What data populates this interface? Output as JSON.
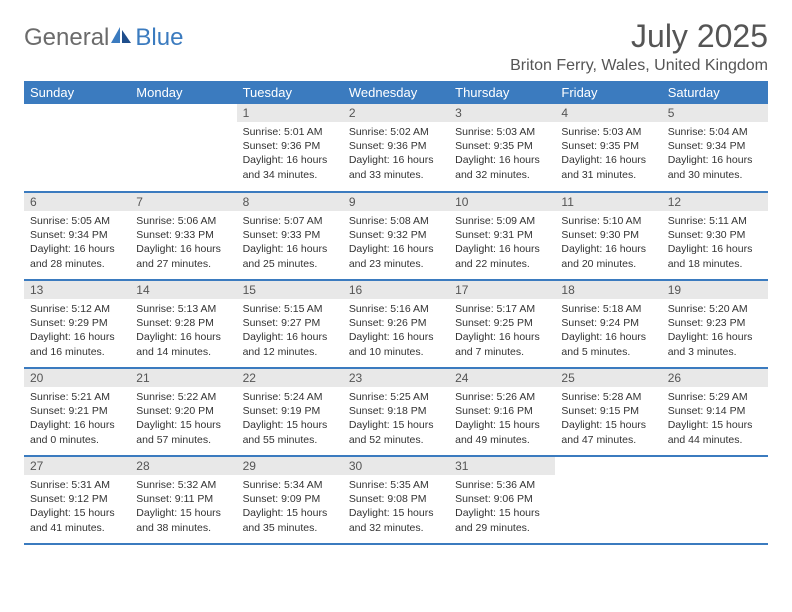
{
  "logo": {
    "word1": "General",
    "word2": "Blue"
  },
  "title": "July 2025",
  "location": "Briton Ferry, Wales, United Kingdom",
  "colors": {
    "header_bg": "#3b7bbf",
    "header_text": "#ffffff",
    "daynum_bg": "#e8e8e8",
    "text": "#333333",
    "rule": "#3b7bbf"
  },
  "weekdays": [
    "Sunday",
    "Monday",
    "Tuesday",
    "Wednesday",
    "Thursday",
    "Friday",
    "Saturday"
  ],
  "weeks": [
    [
      null,
      null,
      {
        "n": "1",
        "sr": "5:01 AM",
        "ss": "9:36 PM",
        "dl": "16 hours and 34 minutes."
      },
      {
        "n": "2",
        "sr": "5:02 AM",
        "ss": "9:36 PM",
        "dl": "16 hours and 33 minutes."
      },
      {
        "n": "3",
        "sr": "5:03 AM",
        "ss": "9:35 PM",
        "dl": "16 hours and 32 minutes."
      },
      {
        "n": "4",
        "sr": "5:03 AM",
        "ss": "9:35 PM",
        "dl": "16 hours and 31 minutes."
      },
      {
        "n": "5",
        "sr": "5:04 AM",
        "ss": "9:34 PM",
        "dl": "16 hours and 30 minutes."
      }
    ],
    [
      {
        "n": "6",
        "sr": "5:05 AM",
        "ss": "9:34 PM",
        "dl": "16 hours and 28 minutes."
      },
      {
        "n": "7",
        "sr": "5:06 AM",
        "ss": "9:33 PM",
        "dl": "16 hours and 27 minutes."
      },
      {
        "n": "8",
        "sr": "5:07 AM",
        "ss": "9:33 PM",
        "dl": "16 hours and 25 minutes."
      },
      {
        "n": "9",
        "sr": "5:08 AM",
        "ss": "9:32 PM",
        "dl": "16 hours and 23 minutes."
      },
      {
        "n": "10",
        "sr": "5:09 AM",
        "ss": "9:31 PM",
        "dl": "16 hours and 22 minutes."
      },
      {
        "n": "11",
        "sr": "5:10 AM",
        "ss": "9:30 PM",
        "dl": "16 hours and 20 minutes."
      },
      {
        "n": "12",
        "sr": "5:11 AM",
        "ss": "9:30 PM",
        "dl": "16 hours and 18 minutes."
      }
    ],
    [
      {
        "n": "13",
        "sr": "5:12 AM",
        "ss": "9:29 PM",
        "dl": "16 hours and 16 minutes."
      },
      {
        "n": "14",
        "sr": "5:13 AM",
        "ss": "9:28 PM",
        "dl": "16 hours and 14 minutes."
      },
      {
        "n": "15",
        "sr": "5:15 AM",
        "ss": "9:27 PM",
        "dl": "16 hours and 12 minutes."
      },
      {
        "n": "16",
        "sr": "5:16 AM",
        "ss": "9:26 PM",
        "dl": "16 hours and 10 minutes."
      },
      {
        "n": "17",
        "sr": "5:17 AM",
        "ss": "9:25 PM",
        "dl": "16 hours and 7 minutes."
      },
      {
        "n": "18",
        "sr": "5:18 AM",
        "ss": "9:24 PM",
        "dl": "16 hours and 5 minutes."
      },
      {
        "n": "19",
        "sr": "5:20 AM",
        "ss": "9:23 PM",
        "dl": "16 hours and 3 minutes."
      }
    ],
    [
      {
        "n": "20",
        "sr": "5:21 AM",
        "ss": "9:21 PM",
        "dl": "16 hours and 0 minutes."
      },
      {
        "n": "21",
        "sr": "5:22 AM",
        "ss": "9:20 PM",
        "dl": "15 hours and 57 minutes."
      },
      {
        "n": "22",
        "sr": "5:24 AM",
        "ss": "9:19 PM",
        "dl": "15 hours and 55 minutes."
      },
      {
        "n": "23",
        "sr": "5:25 AM",
        "ss": "9:18 PM",
        "dl": "15 hours and 52 minutes."
      },
      {
        "n": "24",
        "sr": "5:26 AM",
        "ss": "9:16 PM",
        "dl": "15 hours and 49 minutes."
      },
      {
        "n": "25",
        "sr": "5:28 AM",
        "ss": "9:15 PM",
        "dl": "15 hours and 47 minutes."
      },
      {
        "n": "26",
        "sr": "5:29 AM",
        "ss": "9:14 PM",
        "dl": "15 hours and 44 minutes."
      }
    ],
    [
      {
        "n": "27",
        "sr": "5:31 AM",
        "ss": "9:12 PM",
        "dl": "15 hours and 41 minutes."
      },
      {
        "n": "28",
        "sr": "5:32 AM",
        "ss": "9:11 PM",
        "dl": "15 hours and 38 minutes."
      },
      {
        "n": "29",
        "sr": "5:34 AM",
        "ss": "9:09 PM",
        "dl": "15 hours and 35 minutes."
      },
      {
        "n": "30",
        "sr": "5:35 AM",
        "ss": "9:08 PM",
        "dl": "15 hours and 32 minutes."
      },
      {
        "n": "31",
        "sr": "5:36 AM",
        "ss": "9:06 PM",
        "dl": "15 hours and 29 minutes."
      },
      null,
      null
    ]
  ],
  "labels": {
    "sunrise": "Sunrise:",
    "sunset": "Sunset:",
    "daylight": "Daylight:"
  }
}
